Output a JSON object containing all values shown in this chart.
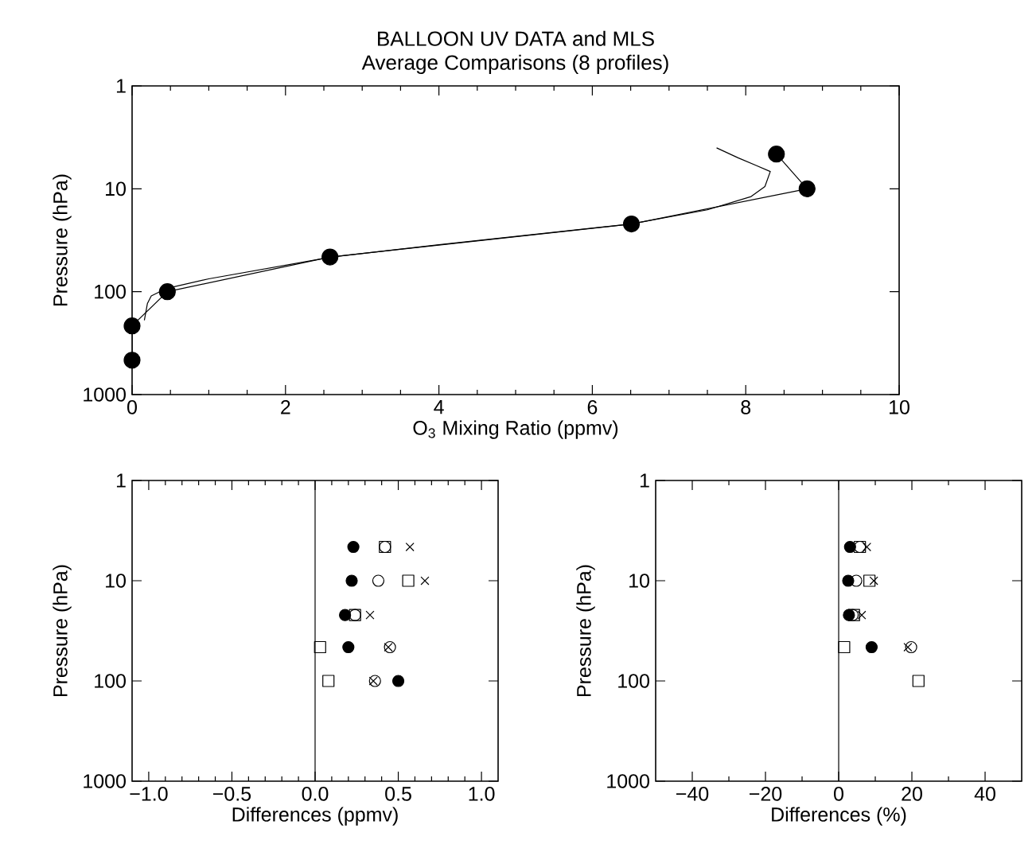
{
  "chart_data": [
    {
      "type": "line",
      "title": "BALLOON UV DATA    and MLS",
      "subtitle": "Average Comparisons (8 profiles)",
      "xlabel": "O$_{3}$ Mixing Ratio (ppmv)",
      "ylabel": "Pressure (hPa)",
      "log": "y",
      "xlim": [
        0,
        10
      ],
      "xticks": [
        0,
        2,
        4,
        6,
        8,
        10
      ],
      "ylim": [
        1000,
        1
      ],
      "yticks": [
        1,
        10,
        100,
        1000
      ],
      "series": [
        {
          "color": "#000000",
          "marker": "none",
          "x": [
            0.16,
            0.2,
            0.25,
            0.45,
            1.0,
            2.6,
            4.0,
            6.5,
            7.5,
            8.07,
            8.25,
            8.32,
            8.13,
            7.9,
            7.62
          ],
          "values": [
            190,
            130,
            110,
            93,
            75,
            46,
            35,
            22,
            16,
            11.9,
            9.5,
            6.8,
            5.9,
            5.0,
            4.0
          ]
        },
        {
          "color": "#000000",
          "marker": "circle",
          "x": [
            0,
            0,
            0.46,
            2.58,
            6.51,
            8.8,
            8.4
          ],
          "values": [
            464,
            215,
            100,
            46,
            22,
            10,
            4.6
          ]
        }
      ]
    },
    {
      "type": "scatter",
      "xlabel": "Differences (ppmv)",
      "ylabel": "Pressure (hPa)",
      "log": "y",
      "xlim": [
        -1.1,
        1.1
      ],
      "xticks": [
        {
          "value": -1,
          "label": "−1.0"
        },
        {
          "value": -0.5,
          "label": "−0.5"
        },
        {
          "value": 0,
          "label": "0.0"
        },
        {
          "value": 0.5,
          "label": "0.5"
        },
        {
          "value": 1,
          "label": "1.0"
        }
      ],
      "ylim": [
        1000,
        1
      ],
      "yticks": [
        1,
        10,
        100,
        1000
      ],
      "ref_lines": [
        {
          "axis": "x",
          "value": 0,
          "color": "#000000"
        }
      ],
      "series": [
        {
          "color": "#000000",
          "marker": "circle",
          "x": [
            0.23,
            0.22,
            0.18,
            0.2,
            0.5
          ],
          "values": [
            4.6,
            10,
            22,
            46,
            100
          ]
        },
        {
          "color": "#000000",
          "marker": "square",
          "x": [
            0.42,
            0.56,
            0.24,
            0.03,
            0.08
          ],
          "values": [
            4.6,
            10,
            22,
            46,
            100
          ]
        },
        {
          "color": "#000000",
          "marker": "circle",
          "x": [
            0.42,
            0.38,
            0.24,
            0.45,
            0.36
          ],
          "values": [
            4.6,
            10,
            22,
            46,
            100
          ]
        },
        {
          "color": "#000000",
          "marker": "cross",
          "x": [
            0.57,
            0.66,
            0.33,
            0.44,
            0.35
          ],
          "values": [
            4.6,
            10,
            22,
            46,
            100
          ]
        }
      ]
    },
    {
      "type": "scatter",
      "xlabel": "Differences (%)",
      "ylabel": "Pressure (hPa)",
      "log": "y",
      "xlim": [
        -50,
        50
      ],
      "xticks": [
        {
          "value": -40,
          "label": "−40"
        },
        {
          "value": -20,
          "label": "−20"
        },
        0,
        20,
        40
      ],
      "ylim": [
        1000,
        1
      ],
      "yticks": [
        1,
        10,
        100,
        1000
      ],
      "ref_lines": [
        {
          "axis": "x",
          "value": 0,
          "color": "#000000"
        }
      ],
      "series": [
        {
          "color": "#000000",
          "marker": "circle",
          "x": [
            3.1,
            2.6,
            2.8,
            9.0
          ],
          "values": [
            4.6,
            10,
            22,
            46
          ]
        },
        {
          "color": "#000000",
          "marker": "square",
          "x": [
            5.8,
            8.4,
            4.2,
            1.5,
            21.8
          ],
          "values": [
            4.6,
            10,
            22,
            46,
            100
          ]
        },
        {
          "color": "#000000",
          "marker": "circle",
          "x": [
            5.8,
            4.8,
            3.8,
            19.8
          ],
          "values": [
            4.6,
            10,
            22,
            46
          ]
        },
        {
          "color": "#000000",
          "marker": "cross",
          "x": [
            7.7,
            9.6,
            6.3,
            18.9
          ],
          "values": [
            4.6,
            10,
            22,
            46
          ]
        }
      ]
    }
  ]
}
